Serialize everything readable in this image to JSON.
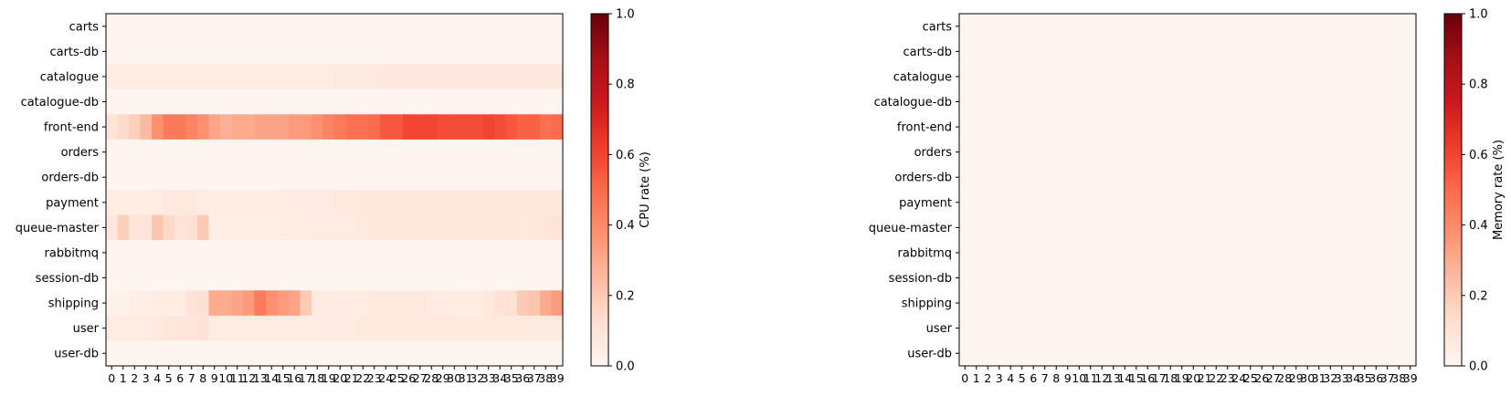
{
  "chart_data": [
    {
      "type": "heatmap",
      "services": [
        "carts",
        "carts-db",
        "catalogue",
        "catalogue-db",
        "front-end",
        "orders",
        "orders-db",
        "payment",
        "queue-master",
        "rabbitmq",
        "session-db",
        "shipping",
        "user",
        "user-db"
      ],
      "x": [
        0,
        1,
        2,
        3,
        4,
        5,
        6,
        7,
        8,
        9,
        10,
        11,
        12,
        13,
        14,
        15,
        16,
        17,
        18,
        19,
        20,
        21,
        22,
        23,
        24,
        25,
        26,
        27,
        28,
        29,
        30,
        31,
        32,
        33,
        34,
        35,
        36,
        37,
        38,
        39
      ],
      "colorbar": {
        "label": "CPU rate (%)",
        "ticks": [
          "0.0",
          "0.2",
          "0.4",
          "0.6",
          "0.8",
          "1.0"
        ],
        "range": [
          0,
          1
        ],
        "cmap": "Reds"
      },
      "rows": [
        [
          0,
          0,
          0,
          0,
          0,
          0,
          0,
          0,
          0,
          0,
          0,
          0,
          0,
          0,
          0,
          0,
          0,
          0,
          0,
          0,
          0,
          0,
          0,
          0,
          0,
          0,
          0,
          0,
          0,
          0,
          0,
          0,
          0,
          0,
          0,
          0,
          0,
          0,
          0,
          0
        ],
        [
          0,
          0,
          0,
          0,
          0,
          0,
          0,
          0,
          0,
          0,
          0,
          0,
          0,
          0,
          0,
          0,
          0,
          0,
          0,
          0,
          0,
          0,
          0,
          0,
          0,
          0,
          0,
          0,
          0,
          0,
          0,
          0,
          0,
          0,
          0,
          0,
          0,
          0,
          0,
          0
        ],
        [
          0.05,
          0.05,
          0.05,
          0.05,
          0.06,
          0.06,
          0.06,
          0.06,
          0.06,
          0.06,
          0.06,
          0.06,
          0.06,
          0.06,
          0.06,
          0.06,
          0.06,
          0.06,
          0.06,
          0.06,
          0.07,
          0.07,
          0.07,
          0.07,
          0.08,
          0.08,
          0.08,
          0.08,
          0.08,
          0.08,
          0.08,
          0.08,
          0.08,
          0.08,
          0.08,
          0.08,
          0.08,
          0.08,
          0.08,
          0.08
        ],
        [
          0,
          0,
          0,
          0,
          0,
          0,
          0,
          0,
          0,
          0,
          0,
          0,
          0,
          0,
          0,
          0,
          0,
          0,
          0,
          0,
          0,
          0,
          0,
          0,
          0,
          0,
          0,
          0,
          0,
          0,
          0,
          0,
          0,
          0,
          0,
          0,
          0,
          0,
          0,
          0
        ],
        [
          0.1,
          0.14,
          0.18,
          0.25,
          0.38,
          0.45,
          0.45,
          0.42,
          0.38,
          0.32,
          0.28,
          0.3,
          0.3,
          0.32,
          0.32,
          0.32,
          0.35,
          0.35,
          0.38,
          0.42,
          0.45,
          0.48,
          0.48,
          0.5,
          0.55,
          0.55,
          0.6,
          0.6,
          0.6,
          0.58,
          0.58,
          0.58,
          0.58,
          0.6,
          0.58,
          0.55,
          0.52,
          0.52,
          0.48,
          0.5
        ],
        [
          0,
          0,
          0,
          0,
          0,
          0,
          0,
          0,
          0,
          0,
          0,
          0,
          0,
          0,
          0,
          0,
          0,
          0,
          0,
          0,
          0,
          0,
          0,
          0,
          0,
          0,
          0,
          0,
          0,
          0,
          0,
          0,
          0,
          0,
          0,
          0,
          0,
          0,
          0,
          0
        ],
        [
          0,
          0,
          0,
          0,
          0,
          0,
          0,
          0,
          0,
          0,
          0,
          0,
          0,
          0,
          0,
          0,
          0,
          0,
          0,
          0,
          0,
          0,
          0,
          0,
          0,
          0,
          0,
          0,
          0,
          0,
          0,
          0,
          0,
          0,
          0,
          0,
          0,
          0,
          0,
          0
        ],
        [
          0.05,
          0.05,
          0.05,
          0.05,
          0.06,
          0.07,
          0.07,
          0.07,
          0.06,
          0.05,
          0.05,
          0.05,
          0.05,
          0.05,
          0.05,
          0.06,
          0.06,
          0.06,
          0.06,
          0.06,
          0.07,
          0.07,
          0.08,
          0.08,
          0.08,
          0.08,
          0.08,
          0.08,
          0.08,
          0.08,
          0.08,
          0.08,
          0.08,
          0.08,
          0.08,
          0.08,
          0.08,
          0.08,
          0.08,
          0.08
        ],
        [
          0.08,
          0.18,
          0.1,
          0.1,
          0.22,
          0.15,
          0.1,
          0.12,
          0.2,
          0.04,
          0.04,
          0.04,
          0.04,
          0.04,
          0.04,
          0.05,
          0.05,
          0.06,
          0.06,
          0.06,
          0.06,
          0.06,
          0.07,
          0.08,
          0.08,
          0.09,
          0.09,
          0.08,
          0.08,
          0.08,
          0.08,
          0.08,
          0.08,
          0.08,
          0.08,
          0.08,
          0.07,
          0.08,
          0.09,
          0.1
        ],
        [
          0,
          0,
          0,
          0,
          0,
          0,
          0,
          0,
          0,
          0,
          0,
          0,
          0,
          0,
          0,
          0,
          0,
          0,
          0,
          0,
          0,
          0,
          0,
          0,
          0,
          0,
          0,
          0,
          0,
          0,
          0,
          0,
          0,
          0,
          0,
          0,
          0,
          0,
          0,
          0
        ],
        [
          0,
          0,
          0,
          0,
          0,
          0,
          0,
          0,
          0,
          0,
          0,
          0,
          0,
          0,
          0,
          0,
          0,
          0,
          0,
          0,
          0,
          0,
          0,
          0,
          0,
          0,
          0,
          0,
          0,
          0,
          0,
          0,
          0,
          0,
          0,
          0,
          0,
          0,
          0,
          0
        ],
        [
          0.02,
          0.02,
          0.04,
          0.04,
          0.05,
          0.05,
          0.05,
          0.1,
          0.12,
          0.3,
          0.3,
          0.32,
          0.35,
          0.45,
          0.38,
          0.35,
          0.32,
          0.2,
          0.06,
          0.06,
          0.06,
          0.06,
          0.06,
          0.07,
          0.07,
          0.07,
          0.07,
          0.07,
          0.06,
          0.06,
          0.05,
          0.05,
          0.05,
          0.07,
          0.1,
          0.12,
          0.2,
          0.22,
          0.3,
          0.35
        ],
        [
          0.06,
          0.06,
          0.06,
          0.06,
          0.07,
          0.09,
          0.09,
          0.09,
          0.1,
          0.06,
          0.06,
          0.06,
          0.06,
          0.06,
          0.06,
          0.06,
          0.06,
          0.06,
          0.06,
          0.06,
          0.06,
          0.06,
          0.07,
          0.07,
          0.07,
          0.07,
          0.07,
          0.07,
          0.07,
          0.07,
          0.07,
          0.07,
          0.07,
          0.07,
          0.07,
          0.07,
          0.07,
          0.07,
          0.07,
          0.07
        ],
        [
          0,
          0,
          0,
          0,
          0,
          0,
          0,
          0,
          0,
          0,
          0,
          0,
          0,
          0,
          0,
          0,
          0,
          0,
          0,
          0,
          0,
          0,
          0,
          0,
          0,
          0,
          0,
          0,
          0,
          0,
          0,
          0,
          0,
          0,
          0,
          0,
          0,
          0,
          0,
          0
        ]
      ]
    },
    {
      "type": "heatmap",
      "services": [
        "carts",
        "carts-db",
        "catalogue",
        "catalogue-db",
        "front-end",
        "orders",
        "orders-db",
        "payment",
        "queue-master",
        "rabbitmq",
        "session-db",
        "shipping",
        "user",
        "user-db"
      ],
      "x": [
        0,
        1,
        2,
        3,
        4,
        5,
        6,
        7,
        8,
        9,
        10,
        11,
        12,
        13,
        14,
        15,
        16,
        17,
        18,
        19,
        20,
        21,
        22,
        23,
        24,
        25,
        26,
        27,
        28,
        29,
        30,
        31,
        32,
        33,
        34,
        35,
        36,
        37,
        38,
        39
      ],
      "colorbar": {
        "label": "Memory rate (%)",
        "ticks": [
          "0.0",
          "0.2",
          "0.4",
          "0.6",
          "0.8",
          "1.0"
        ],
        "range": [
          0,
          1
        ],
        "cmap": "Reds"
      },
      "rows": []
    }
  ]
}
